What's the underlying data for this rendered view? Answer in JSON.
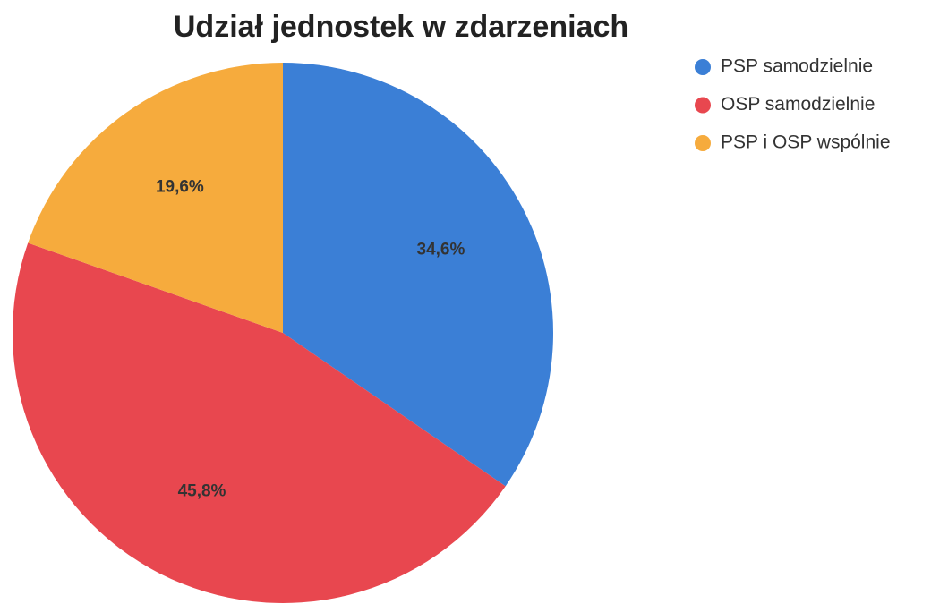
{
  "chart_data": {
    "type": "pie",
    "title": "Udział jednostek w zdarzeniach",
    "categories": [
      "PSP samodzielnie",
      "OSP samodzielnie",
      "PSP i OSP wspólnie"
    ],
    "values": [
      34.6,
      45.8,
      19.6
    ],
    "value_labels": [
      "34,6%",
      "45,8%",
      "19,6%"
    ],
    "colors": [
      "#3b7fd6",
      "#e8474f",
      "#f6ab3d"
    ],
    "legend": "right"
  }
}
